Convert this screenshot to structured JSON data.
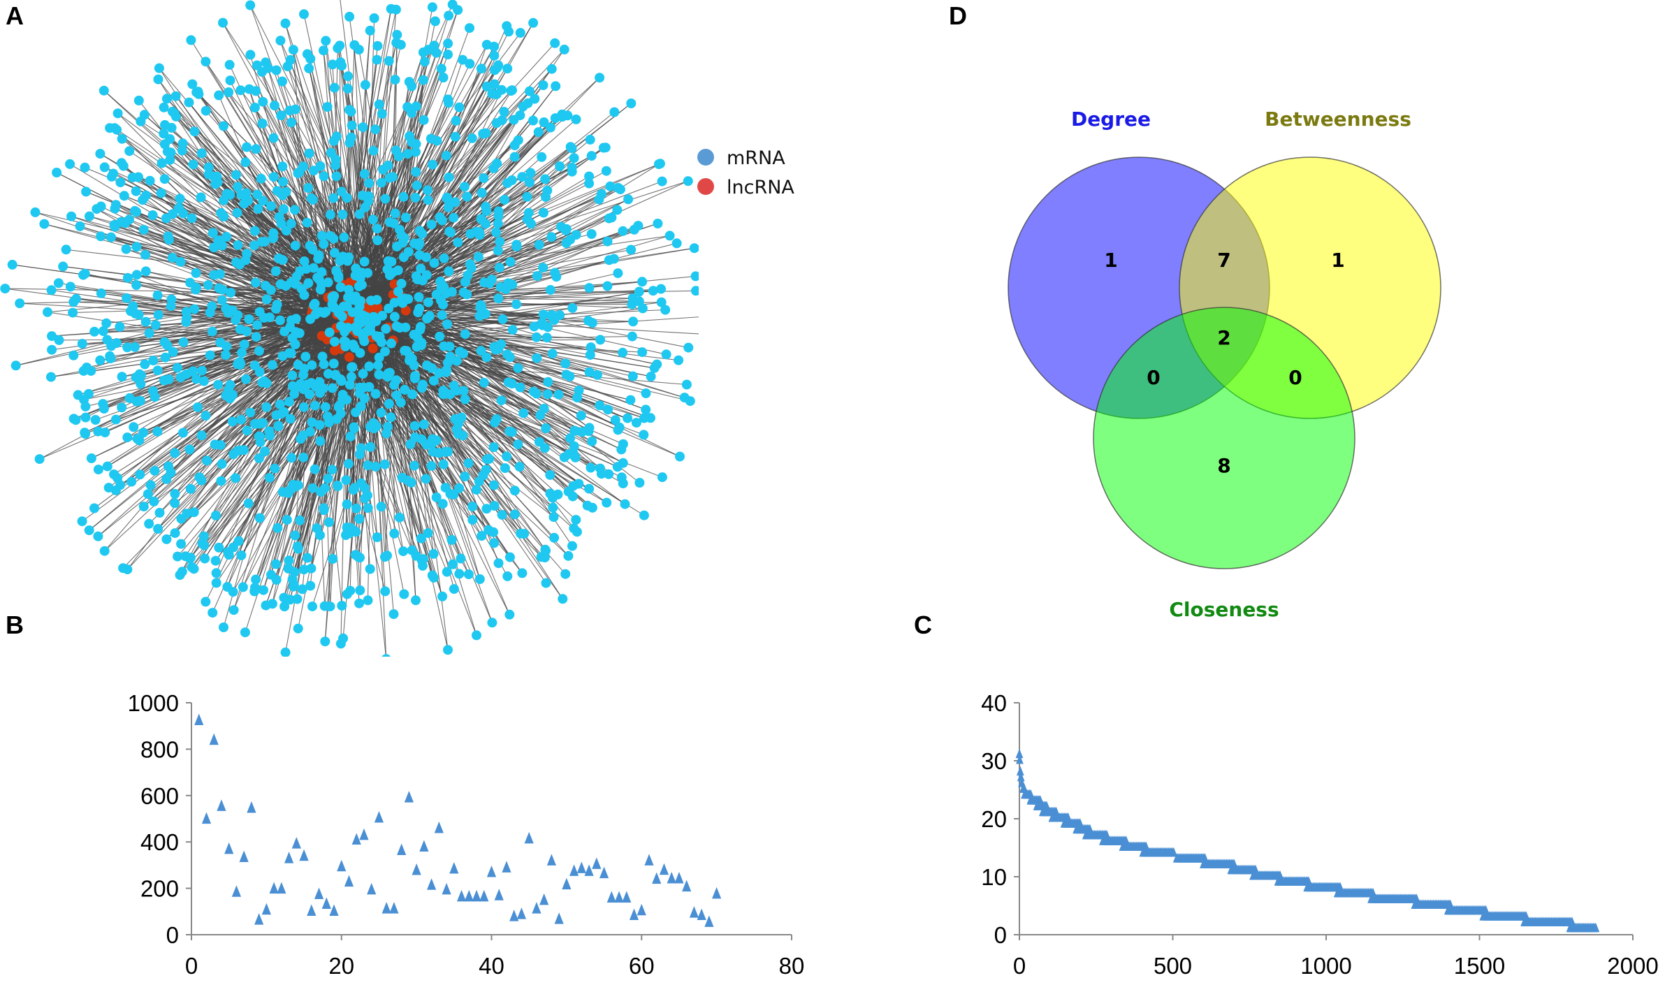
{
  "panels": {
    "a": "A",
    "b": "B",
    "c": "C",
    "d": "D"
  },
  "network": {
    "legend": [
      {
        "label": "mRNA",
        "color": "#5b9bd5"
      },
      {
        "label": "lncRNA",
        "color": "#e04848"
      }
    ],
    "node_colors": {
      "mRNA": "#1ec8f0",
      "lncRNA": "#d63a0c",
      "edge": "#444444"
    }
  },
  "chart_data": [
    {
      "type": "scatter",
      "panel": "B",
      "marker": "triangle",
      "color": "#4a8fd4",
      "xlim": [
        0,
        80
      ],
      "ylim": [
        0,
        1000
      ],
      "xticks": [
        "0",
        "20",
        "40",
        "60",
        "80"
      ],
      "yticks": [
        "0",
        "200",
        "400",
        "600",
        "800",
        "1000"
      ],
      "x": [
        1,
        2,
        3,
        4,
        5,
        6,
        7,
        8,
        9,
        10,
        11,
        12,
        13,
        14,
        15,
        16,
        17,
        18,
        19,
        20,
        21,
        22,
        23,
        24,
        25,
        26,
        27,
        28,
        29,
        30,
        31,
        32,
        33,
        34,
        35,
        36,
        37,
        38,
        39,
        40,
        41,
        42,
        43,
        44,
        45,
        46,
        47,
        48,
        49,
        50,
        51,
        52,
        53,
        54,
        55,
        56,
        57,
        58,
        59,
        60,
        61,
        62,
        63,
        64,
        65,
        66,
        67,
        68,
        69,
        70
      ],
      "y": [
        920,
        495,
        835,
        550,
        365,
        180,
        330,
        542,
        60,
        103,
        194,
        194,
        325,
        388,
        335,
        98,
        170,
        128,
        98,
        290,
        224,
        405,
        425,
        190,
        500,
        108,
        108,
        360,
        587,
        274,
        375,
        210,
        455,
        190,
        280,
        160,
        160,
        160,
        160,
        265,
        165,
        285,
        75,
        84,
        410,
        108,
        145,
        315,
        63,
        212,
        270,
        282,
        270,
        300,
        260,
        155,
        155,
        155,
        80,
        100,
        315,
        236,
        275,
        238,
        238,
        203,
        90,
        80,
        50,
        172
      ]
    },
    {
      "type": "scatter",
      "panel": "C",
      "marker": "triangle",
      "color": "#4a8fd4",
      "xlim": [
        0,
        2000
      ],
      "ylim": [
        0,
        40
      ],
      "xticks": [
        "0",
        "500",
        "1000",
        "1500",
        "2000"
      ],
      "yticks": [
        "0",
        "10",
        "20",
        "30",
        "40"
      ],
      "steps": [
        [
          31,
          0,
          0
        ],
        [
          30,
          1,
          2
        ],
        [
          28,
          3,
          4
        ],
        [
          27,
          5,
          7
        ],
        [
          26,
          8,
          11
        ],
        [
          25,
          12,
          16
        ],
        [
          24,
          17,
          40
        ],
        [
          23,
          36,
          69
        ],
        [
          22,
          57,
          91
        ],
        [
          21,
          76,
          120
        ],
        [
          20,
          107,
          159
        ],
        [
          19,
          146,
          198
        ],
        [
          18,
          186,
          233
        ],
        [
          17,
          217,
          285
        ],
        [
          16,
          272,
          348
        ],
        [
          15,
          337,
          414
        ],
        [
          14,
          403,
          505
        ],
        [
          13,
          513,
          607
        ],
        [
          12,
          600,
          702
        ],
        [
          11,
          690,
          773
        ],
        [
          10,
          762,
          851
        ],
        [
          9,
          843,
          946
        ],
        [
          8,
          938,
          1048
        ],
        [
          7,
          1037,
          1153
        ],
        [
          6,
          1147,
          1297
        ],
        [
          5,
          1289,
          1407
        ],
        [
          4,
          1397,
          1523
        ],
        [
          3,
          1512,
          1654
        ],
        [
          2,
          1646,
          1803
        ],
        [
          1,
          1795,
          1879
        ]
      ]
    },
    {
      "type": "venn",
      "panel": "D",
      "sets": [
        {
          "name": "Degree",
          "color": "#0000ff",
          "label_color": "#1a1ae6"
        },
        {
          "name": "Betweenness",
          "color": "#ffff00",
          "label_color": "#7a7a10"
        },
        {
          "name": "Closeness",
          "color": "#00ff00",
          "label_color": "#128a12"
        }
      ],
      "regions": {
        "degree_only": "1",
        "betweenness_only": "1",
        "closeness_only": "8",
        "degree_betweenness": "7",
        "degree_closeness": "0",
        "betweenness_closeness": "0",
        "all": "2"
      }
    }
  ]
}
